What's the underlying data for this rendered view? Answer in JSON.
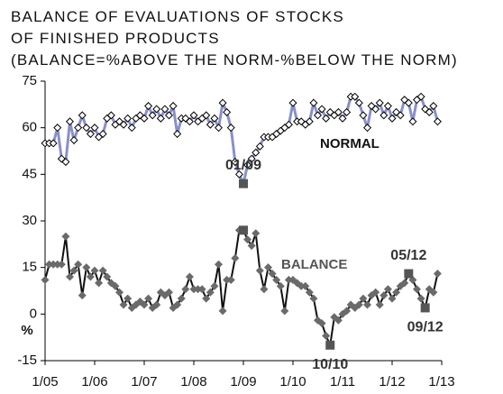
{
  "chart_data": {
    "type": "line",
    "title": [
      "BALANCE  OF  EVALUATIONS  OF  STOCKS",
      "OF FINISHED PRODUCTS",
      "(BALANCE=%ABOVE THE NORM-%BELOW THE NORM)"
    ],
    "y_label": "%",
    "x": [
      0,
      1,
      2,
      3,
      4,
      5,
      6,
      7,
      8,
      9,
      10,
      11,
      12,
      13,
      14,
      15,
      16,
      17,
      18,
      19,
      20,
      21,
      22,
      23,
      24,
      25,
      26,
      27,
      28,
      29,
      30,
      31,
      32,
      33,
      34,
      35,
      36,
      37,
      38,
      39,
      40,
      41,
      42,
      43,
      44,
      45,
      46,
      47,
      48,
      49,
      50,
      51,
      52,
      53,
      54,
      55,
      56,
      57,
      58,
      59,
      60,
      61,
      62,
      63,
      64,
      65,
      66,
      67,
      68,
      69,
      70,
      71,
      72,
      73,
      74,
      75,
      76,
      77,
      78,
      79,
      80,
      81,
      82,
      83,
      84,
      85,
      86,
      87,
      88,
      89,
      90,
      91,
      92,
      93,
      94,
      95
    ],
    "xlim": [
      0,
      96
    ],
    "xticks": [
      {
        "value": 0,
        "label": "1/05"
      },
      {
        "value": 12,
        "label": "1/06"
      },
      {
        "value": 24,
        "label": "1/07"
      },
      {
        "value": 36,
        "label": "1/08"
      },
      {
        "value": 48,
        "label": "1/09"
      },
      {
        "value": 60,
        "label": "1/10"
      },
      {
        "value": 72,
        "label": "1/11"
      },
      {
        "value": 84,
        "label": "1/12"
      },
      {
        "value": 96,
        "label": "1/13"
      }
    ],
    "ylim": [
      -15,
      75
    ],
    "yticks": [
      -15,
      0,
      15,
      30,
      45,
      60,
      75
    ],
    "series": [
      {
        "name": "NORMAL",
        "color": "#8a8fc9",
        "marker_color": "#ffffff",
        "values": [
          55,
          55,
          55,
          60,
          50,
          49,
          62,
          56,
          60,
          64,
          60,
          58,
          60,
          57,
          58,
          63,
          64,
          61,
          62,
          61,
          63,
          60,
          63,
          64,
          63,
          67,
          64,
          66,
          63,
          66,
          64,
          67,
          58,
          63,
          63,
          62,
          64,
          62,
          63,
          64,
          61,
          63,
          60,
          68,
          65,
          60,
          49,
          45,
          42,
          48,
          50,
          52,
          54,
          57,
          57,
          57,
          58,
          59,
          60,
          61,
          68,
          62,
          62,
          61,
          62,
          68,
          64,
          66,
          63,
          65,
          64,
          65,
          63,
          65,
          70,
          70,
          68,
          64,
          60,
          67,
          66,
          68,
          64,
          67,
          63,
          65,
          64,
          69,
          68,
          62,
          69,
          70,
          66,
          65,
          67,
          62
        ]
      },
      {
        "name": "BALANCE",
        "color": "#111111",
        "marker_color": "#6a6a6a",
        "values": [
          11,
          16,
          16,
          16,
          16,
          25,
          12,
          14,
          16,
          6,
          15,
          12,
          14,
          10,
          14,
          12,
          10,
          9,
          7,
          3,
          5,
          2,
          3,
          4,
          3,
          5,
          2,
          3,
          7,
          6,
          7,
          2,
          3,
          5,
          8,
          12,
          8,
          8,
          8,
          5,
          7,
          9,
          16,
          1,
          11,
          11,
          18,
          27,
          27,
          24,
          22,
          26,
          14,
          8,
          15,
          13,
          11,
          9,
          1,
          11,
          11,
          10,
          9,
          9,
          7,
          5,
          -2,
          -3,
          -7,
          -10,
          -1,
          -2,
          0,
          1,
          3,
          2,
          3,
          5,
          3,
          6,
          7,
          3,
          6,
          8,
          5,
          7,
          9,
          10,
          13,
          11,
          8,
          5,
          2,
          8,
          7,
          13
        ]
      }
    ],
    "annotations": [
      {
        "text": "01/09",
        "x": 48,
        "series": [
          0,
          1
        ],
        "position": "above"
      },
      {
        "text": "10/10",
        "x": 69,
        "series": [
          1
        ],
        "position": "below"
      },
      {
        "text": "05/12",
        "x": 88,
        "series": [
          1
        ],
        "position": "above"
      },
      {
        "text": "09/12",
        "x": 92,
        "series": [
          1
        ],
        "position": "below"
      }
    ]
  }
}
